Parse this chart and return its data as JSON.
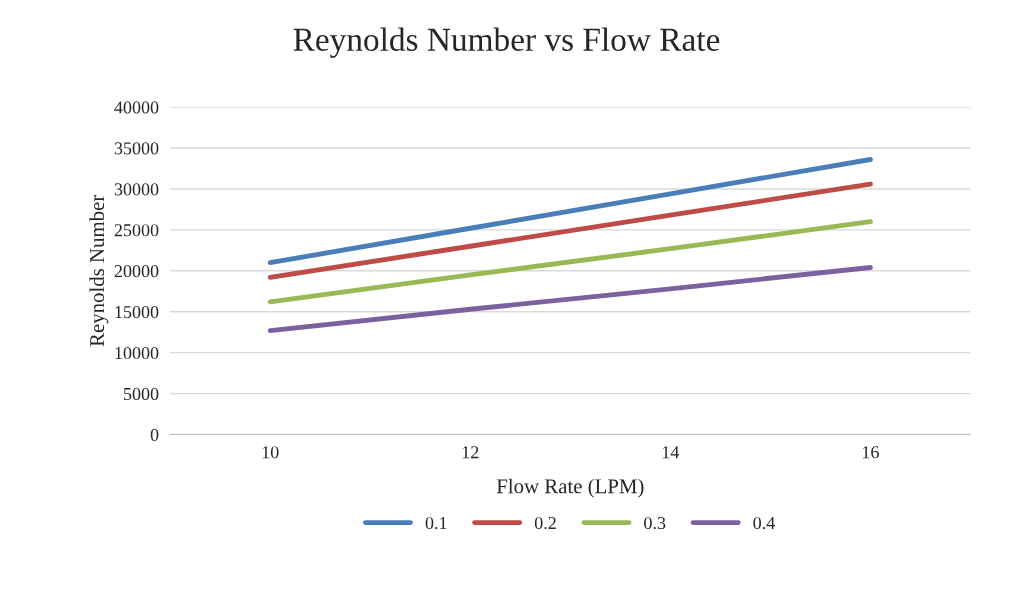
{
  "chart_data": {
    "type": "line",
    "title": "Reynolds Number vs Flow Rate",
    "xlabel": "Flow Rate (LPM)",
    "ylabel": "Reynolds Number",
    "categories": [
      "10",
      "12",
      "14",
      "16"
    ],
    "series": [
      {
        "name": "0.1",
        "color": "#4a7ebb",
        "values": [
          21000,
          25200,
          29400,
          33600
        ]
      },
      {
        "name": "0.2",
        "color": "#be4b48",
        "values": [
          19200,
          23000,
          26800,
          30600
        ]
      },
      {
        "name": "0.3",
        "color": "#98b954",
        "values": [
          16200,
          19500,
          22700,
          26000
        ]
      },
      {
        "name": "0.4",
        "color": "#7d60a0",
        "values": [
          12700,
          15300,
          17800,
          20400
        ]
      }
    ],
    "ylim": [
      0,
      40000
    ],
    "yticks": [
      0,
      5000,
      10000,
      15000,
      20000,
      25000,
      30000,
      35000,
      40000
    ],
    "grid": "y",
    "legend": "bottom",
    "marker": "none",
    "line_style": "solid"
  }
}
